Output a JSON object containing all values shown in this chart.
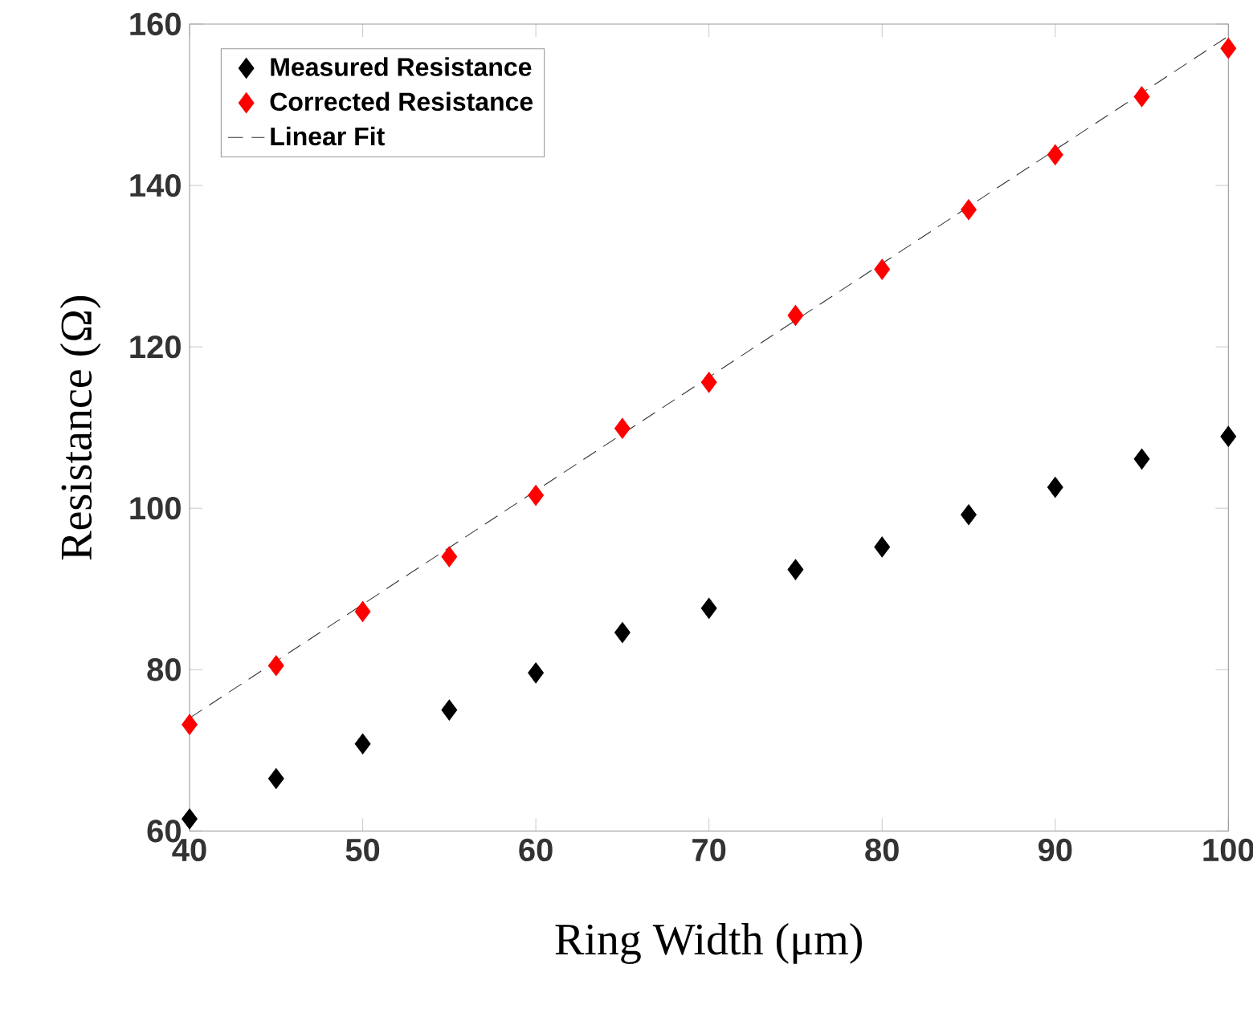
{
  "chart_data": {
    "type": "scatter",
    "xlabel": "Ring Width (μm)",
    "ylabel": "Resistance (Ω)",
    "xlim": [
      40,
      100
    ],
    "ylim": [
      60,
      160
    ],
    "xticks": [
      40,
      50,
      60,
      70,
      80,
      90,
      100
    ],
    "yticks": [
      60,
      80,
      100,
      120,
      140,
      160
    ],
    "grid": false,
    "legend": "top left",
    "marker": "diamond",
    "x": [
      40,
      45,
      50,
      55,
      60,
      65,
      70,
      75,
      80,
      85,
      90,
      95,
      100
    ],
    "series": [
      {
        "name": "Measured Resistance",
        "color": "#000000",
        "values": [
          61.5,
          66.5,
          70.8,
          75,
          79.6,
          84.6,
          87.6,
          92.4,
          95.2,
          99.2,
          102.6,
          106.1,
          108.9
        ]
      },
      {
        "name": "Corrected Resistance",
        "color": "#ff0000",
        "values": [
          73.2,
          80.5,
          87.2,
          94,
          101.6,
          109.9,
          115.6,
          123.9,
          129.6,
          137,
          143.8,
          151,
          157
        ]
      },
      {
        "name": "Linear Fit",
        "type": "line",
        "color": "#333333",
        "marker": "none",
        "line_style": "dashed",
        "x": [
          40,
          100
        ],
        "values": [
          74,
          158.5
        ]
      }
    ]
  }
}
